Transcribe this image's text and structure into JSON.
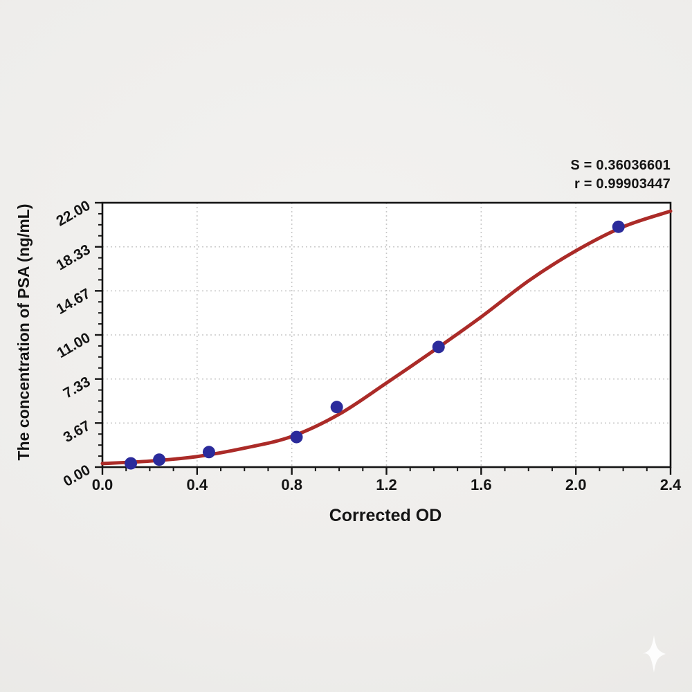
{
  "annotation": {
    "s_label": "S = 0.36036601",
    "r_label": "r = 0.99903447"
  },
  "chart_data": {
    "type": "scatter",
    "title": "",
    "xlabel": "Corrected OD",
    "ylabel": "The concentration of PSA (ng/mL)",
    "xlim": [
      0,
      2.4
    ],
    "ylim": [
      0,
      22
    ],
    "x_tick_labels": [
      "0.0",
      "0.4",
      "0.8",
      "1.2",
      "1.6",
      "2.0",
      "2.4"
    ],
    "y_tick_labels": [
      "0.00",
      "3.67",
      "7.33",
      "11.00",
      "14.67",
      "18.33",
      "22.00"
    ],
    "x_major_step": 0.4,
    "x_minor_step": 0.1,
    "y_major_step": 3.6667,
    "y_minor_divisions": 4,
    "grid": {
      "style": "dotted",
      "color": "#c9c9c9",
      "at": "interior-major-ticks"
    },
    "legend": null,
    "colors": {
      "curve": "#ab2b28",
      "points": "#2b2b9b",
      "axis": "#141414",
      "plot_bg": "#ffffff"
    },
    "series": [
      {
        "name": "standard-points",
        "type": "scatter",
        "color": "#2b2b9b",
        "points": [
          [
            0.12,
            0.31
          ],
          [
            0.24,
            0.62
          ],
          [
            0.45,
            1.25
          ],
          [
            0.82,
            2.5
          ],
          [
            0.99,
            5.0
          ],
          [
            1.42,
            10.0
          ],
          [
            2.18,
            20.0
          ]
        ]
      },
      {
        "name": "4pl-fit-curve",
        "type": "line",
        "color": "#ab2b28",
        "points": [
          [
            0,
            0.3
          ],
          [
            0.2,
            0.5
          ],
          [
            0.4,
            0.88
          ],
          [
            0.6,
            1.58
          ],
          [
            0.8,
            2.55
          ],
          [
            1.0,
            4.4
          ],
          [
            1.2,
            7.0
          ],
          [
            1.4,
            9.7
          ],
          [
            1.6,
            12.5
          ],
          [
            1.8,
            15.5
          ],
          [
            2.0,
            18.0
          ],
          [
            2.2,
            20.0
          ],
          [
            2.4,
            21.3
          ]
        ]
      }
    ],
    "stats": {
      "S": "0.36036601",
      "r": "0.99903447"
    }
  }
}
